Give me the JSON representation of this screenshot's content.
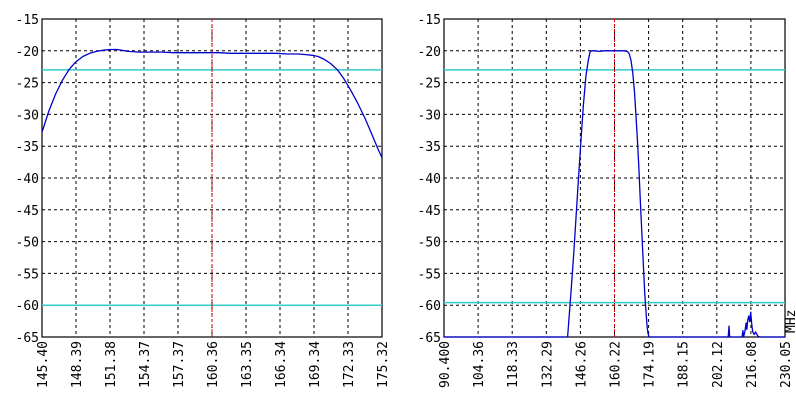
{
  "chart_data": [
    {
      "type": "line",
      "ylim": [
        -65,
        -15
      ],
      "y_ticks": [
        "-15",
        "-20",
        "-25",
        "-30",
        "-35",
        "-40",
        "-45",
        "-50",
        "-55",
        "-60",
        "-65"
      ],
      "xlim": [
        145.4,
        175.32
      ],
      "x_ticks": [
        "145.40",
        "148.39",
        "151.38",
        "154.37",
        "157.37",
        "160.36",
        "163.35",
        "166.34",
        "169.34",
        "172.33",
        "175.32"
      ],
      "x_unit": "",
      "grid": true,
      "series": [
        {
          "color": "#0000cc",
          "x": [
            145.4,
            146.0,
            146.6,
            147.2,
            147.8,
            148.4,
            149.0,
            149.6,
            150.2,
            150.8,
            151.4,
            152.0,
            153.0,
            154.0,
            155.0,
            156.0,
            157.0,
            158.0,
            159.0,
            160.0,
            161.0,
            162.0,
            163.0,
            164.0,
            165.0,
            166.0,
            167.0,
            168.0,
            168.6,
            169.2,
            169.7,
            170.2,
            170.8,
            171.4,
            172.0,
            172.6,
            173.2,
            173.8,
            174.4,
            175.0,
            175.32
          ],
          "values": [
            -32.8,
            -29.5,
            -26.8,
            -24.6,
            -22.9,
            -21.7,
            -20.9,
            -20.4,
            -20.1,
            -19.9,
            -19.8,
            -19.8,
            -20.1,
            -20.2,
            -20.2,
            -20.2,
            -20.3,
            -20.3,
            -20.3,
            -20.3,
            -20.3,
            -20.4,
            -20.4,
            -20.4,
            -20.4,
            -20.4,
            -20.5,
            -20.5,
            -20.6,
            -20.7,
            -20.9,
            -21.3,
            -22.0,
            -23.0,
            -24.5,
            -26.3,
            -28.3,
            -30.5,
            -33.0,
            -35.6,
            -36.8
          ]
        }
      ],
      "hlines": [
        {
          "y": -23,
          "color": "#33cccc"
        },
        {
          "y": -60,
          "color": "#33cccc"
        }
      ],
      "vline": {
        "x": 160.36,
        "color": "#dd0000"
      }
    },
    {
      "type": "line",
      "ylim": [
        -65,
        -15
      ],
      "y_ticks": [
        "-15",
        "-20",
        "-25",
        "-30",
        "-35",
        "-40",
        "-45",
        "-50",
        "-55",
        "-60",
        "-65"
      ],
      "xlim": [
        90.4,
        230.05
      ],
      "x_ticks": [
        "90.400",
        "104.36",
        "118.33",
        "132.29",
        "146.26",
        "160.22",
        "174.19",
        "188.15",
        "202.12",
        "216.08",
        "230.05"
      ],
      "x_unit": "MHz",
      "grid": true,
      "series": [
        {
          "color": "#0000cc",
          "x": [
            90.4,
            110.0,
            130.0,
            141.0,
            141.5,
            142.5,
            143.5,
            144.5,
            145.5,
            146.5,
            147.5,
            148.5,
            149.5,
            150.2,
            150.8,
            152.0,
            154.0,
            156.0,
            157.0,
            158.0,
            160.0,
            162.0,
            164.0,
            165.5,
            166.3,
            167.0,
            167.7,
            168.4,
            169.0,
            169.6,
            170.2,
            170.8,
            171.4,
            172.0,
            172.6,
            173.2,
            173.6,
            174.0,
            174.4,
            175.0,
            190.0,
            204.0,
            206.8,
            207.1,
            207.4,
            210.0,
            212.5,
            212.8,
            213.1,
            213.6,
            214.1,
            214.4,
            214.8,
            215.2,
            215.6,
            216.0,
            216.4,
            216.8,
            217.4,
            218.0,
            219.0,
            220.0,
            230.05
          ],
          "values": [
            -65.0,
            -65.0,
            -65.0,
            -65.0,
            -62.5,
            -57.5,
            -52.0,
            -46.0,
            -40.0,
            -34.0,
            -28.5,
            -24.0,
            -21.5,
            -20.2,
            -20.0,
            -20.0,
            -20.1,
            -20.0,
            -20.0,
            -20.0,
            -20.0,
            -20.0,
            -20.0,
            -20.1,
            -20.5,
            -21.5,
            -23.5,
            -26.5,
            -30.0,
            -34.0,
            -38.5,
            -43.5,
            -48.5,
            -53.5,
            -58.0,
            -61.5,
            -63.5,
            -64.5,
            -65.0,
            -65.0,
            -65.0,
            -65.0,
            -65.0,
            -63.3,
            -65.0,
            -65.0,
            -65.0,
            -64.0,
            -65.0,
            -64.2,
            -62.8,
            -63.8,
            -62.3,
            -61.7,
            -62.6,
            -61.1,
            -62.9,
            -64.1,
            -64.6,
            -64.2,
            -64.9,
            -65.0,
            -65.0
          ]
        }
      ],
      "hlines": [
        {
          "y": -23,
          "color": "#33cccc"
        },
        {
          "y": -59.6,
          "color": "#33cccc"
        }
      ],
      "vline": {
        "x": 160.22,
        "color": "#dd0000"
      }
    }
  ]
}
